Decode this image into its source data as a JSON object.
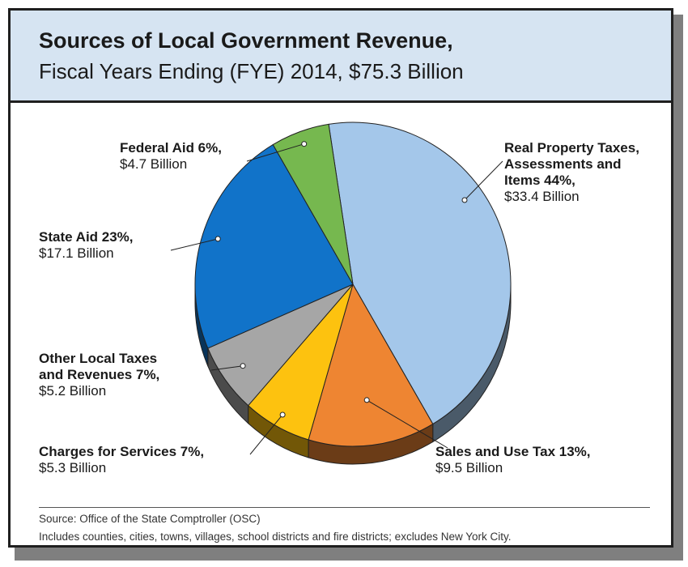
{
  "title": "Sources of Local Government Revenue,",
  "subtitle": "Fiscal Years Ending (FYE) 2014, $75.3 Billion",
  "chart_data": {
    "type": "pie",
    "total": "$75.3 Billion",
    "slices": [
      {
        "label_lines": [
          "Real Property Taxes,",
          "Assessments and",
          "Items 44%,"
        ],
        "value_text": "$33.4 Billion",
        "percent": 44,
        "value": 33.4,
        "color": "#a4c7ea"
      },
      {
        "label_lines": [
          "Sales and Use Tax 13%,"
        ],
        "value_text": "$9.5 Billion",
        "percent": 13,
        "value": 9.5,
        "color": "#ee8532"
      },
      {
        "label_lines": [
          "Charges for Services 7%,"
        ],
        "value_text": "$5.3 Billion",
        "percent": 7,
        "value": 5.3,
        "color": "#fdc20f"
      },
      {
        "label_lines": [
          "Other Local Taxes",
          "and Revenues 7%,"
        ],
        "value_text": "$5.2 Billion",
        "percent": 7,
        "value": 5.2,
        "color": "#a6a6a6"
      },
      {
        "label_lines": [
          "State Aid 23%,"
        ],
        "value_text": "$17.1 Billion",
        "percent": 23,
        "value": 17.1,
        "color": "#1173c9"
      },
      {
        "label_lines": [
          "Federal Aid 6%,"
        ],
        "value_text": "$4.7 Billion",
        "percent": 6,
        "value": 4.7,
        "color": "#76b84f"
      }
    ]
  },
  "source_line": "Source: Office of the State Comptroller (OSC)",
  "note_line": "Includes counties, cities, towns, villages, school districts and fire districts; excludes New York City."
}
